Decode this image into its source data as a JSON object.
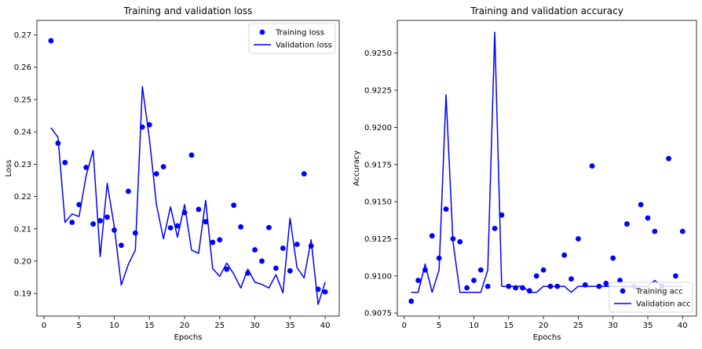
{
  "colors": {
    "series": "#0000ff",
    "axis": "#000000",
    "background": "#ffffff",
    "legend_border": "#cccccc"
  },
  "chart_data": [
    {
      "type": "line",
      "title": "Training and validation loss",
      "xlabel": "Epochs",
      "ylabel": "Loss",
      "xlim": [
        -1,
        42
      ],
      "ylim": [
        0.183,
        0.2745
      ],
      "xticks": [
        0,
        5,
        10,
        15,
        20,
        25,
        30,
        35,
        40
      ],
      "yticks": [
        0.19,
        0.2,
        0.21,
        0.22,
        0.23,
        0.24,
        0.25,
        0.26,
        0.27
      ],
      "ytick_labels": [
        "0.19",
        "0.20",
        "0.21",
        "0.22",
        "0.23",
        "0.24",
        "0.25",
        "0.26",
        "0.27"
      ],
      "legend_position": "top-right",
      "grid": false,
      "x": [
        1,
        2,
        3,
        4,
        5,
        6,
        7,
        8,
        9,
        10,
        11,
        12,
        13,
        14,
        15,
        16,
        17,
        18,
        19,
        20,
        21,
        22,
        23,
        24,
        25,
        26,
        27,
        28,
        29,
        30,
        31,
        32,
        33,
        34,
        35,
        36,
        37,
        38,
        39,
        40
      ],
      "series": [
        {
          "name": "Training loss",
          "style": "markers",
          "values": [
            0.2682,
            0.2365,
            0.2305,
            0.212,
            0.2175,
            0.229,
            0.2115,
            0.2125,
            0.2136,
            0.2096,
            0.2049,
            0.2216,
            0.2087,
            0.2415,
            0.2422,
            0.227,
            0.2292,
            0.2103,
            0.2109,
            0.215,
            0.2328,
            0.216,
            0.2122,
            0.2058,
            0.2066,
            0.1975,
            0.2173,
            0.2106,
            0.1963,
            0.2035,
            0.2,
            0.2104,
            0.1978,
            0.204,
            0.197,
            0.2052,
            0.227,
            0.2047,
            0.1913,
            0.1905
          ]
        },
        {
          "name": "Validation loss",
          "style": "line",
          "values": [
            0.2413,
            0.2383,
            0.212,
            0.2146,
            0.2138,
            0.2264,
            0.2343,
            0.2014,
            0.2241,
            0.2107,
            0.1926,
            0.199,
            0.2034,
            0.254,
            0.2379,
            0.2175,
            0.2069,
            0.2168,
            0.2074,
            0.2175,
            0.2034,
            0.2024,
            0.2188,
            0.1977,
            0.1953,
            0.1994,
            0.196,
            0.1917,
            0.1975,
            0.1935,
            0.1928,
            0.1917,
            0.1958,
            0.1902,
            0.2133,
            0.198,
            0.1948,
            0.2066,
            0.1866,
            0.1935
          ]
        }
      ]
    },
    {
      "type": "line",
      "title": "Training and validation accuracy",
      "xlabel": "Epochs",
      "ylabel": "Accuracy",
      "xlim": [
        -1,
        42
      ],
      "ylim": [
        0.9073,
        0.9272
      ],
      "xticks": [
        0,
        5,
        10,
        15,
        20,
        25,
        30,
        35,
        40
      ],
      "yticks": [
        0.9075,
        0.91,
        0.9125,
        0.915,
        0.9175,
        0.92,
        0.9225,
        0.925
      ],
      "ytick_labels": [
        "0.9075",
        "0.9100",
        "0.9125",
        "0.9150",
        "0.9175",
        "0.9200",
        "0.9225",
        "0.9250"
      ],
      "legend_position": "bottom-right",
      "grid": false,
      "x": [
        1,
        2,
        3,
        4,
        5,
        6,
        7,
        8,
        9,
        10,
        11,
        12,
        13,
        14,
        15,
        16,
        17,
        18,
        19,
        20,
        21,
        22,
        23,
        24,
        25,
        26,
        27,
        28,
        29,
        30,
        31,
        32,
        33,
        34,
        35,
        36,
        37,
        38,
        39,
        40
      ],
      "series": [
        {
          "name": "Training acc",
          "style": "markers",
          "values": [
            0.9083,
            0.9097,
            0.9104,
            0.9127,
            0.9112,
            0.9145,
            0.9125,
            0.9123,
            0.9092,
            0.9097,
            0.9104,
            0.9093,
            0.9132,
            0.9141,
            0.9093,
            0.9092,
            0.9092,
            0.909,
            0.91,
            0.9104,
            0.9093,
            0.9093,
            0.9114,
            0.9098,
            0.9125,
            0.9094,
            0.9174,
            0.9093,
            0.9095,
            0.9112,
            0.9097,
            0.9135,
            0.9093,
            0.9148,
            0.9139,
            0.913,
            0.9093,
            0.9179,
            0.91,
            0.913
          ]
        },
        {
          "name": "Validation acc",
          "style": "line",
          "values": [
            0.9089,
            0.9089,
            0.9108,
            0.9089,
            0.9104,
            0.9222,
            0.9123,
            0.9089,
            0.9089,
            0.9089,
            0.9089,
            0.9104,
            0.9264,
            0.9093,
            0.9093,
            0.9093,
            0.9093,
            0.9089,
            0.9089,
            0.9093,
            0.9093,
            0.9093,
            0.9093,
            0.9089,
            0.9093,
            0.9093,
            0.9093,
            0.9093,
            0.9093,
            0.9093,
            0.9093,
            0.9093,
            0.9093,
            0.9093,
            0.9093,
            0.9097,
            0.9093,
            0.9093,
            0.9093,
            0.9093
          ]
        }
      ]
    }
  ]
}
